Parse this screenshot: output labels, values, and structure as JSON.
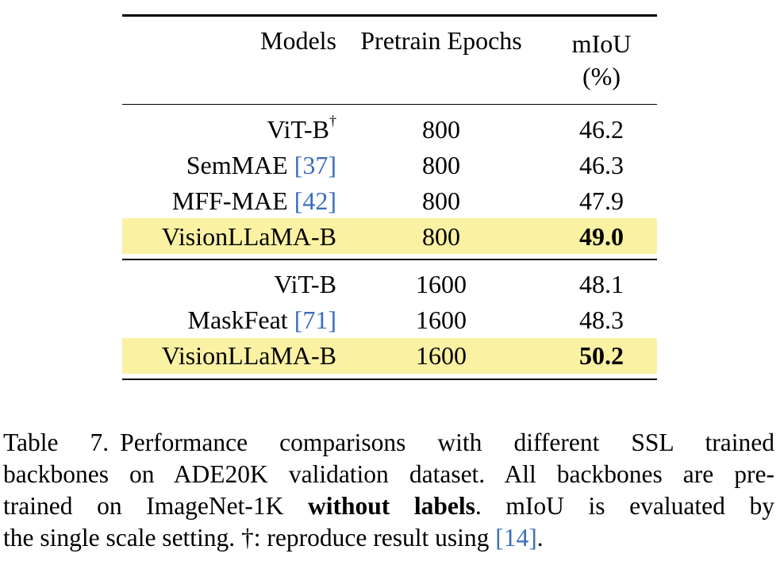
{
  "table": {
    "headers": {
      "models": "Models",
      "epochs": "Pretrain Epochs",
      "miou_line1": "mIoU",
      "miou_line2": "(%)"
    },
    "groups": [
      {
        "rows": [
          {
            "model": "ViT-B",
            "sup": "†",
            "ref": "",
            "epochs": "800",
            "miou": "46.2",
            "highlight": false,
            "bold": false
          },
          {
            "model": "SemMAE ",
            "sup": "",
            "ref": "[37]",
            "epochs": "800",
            "miou": "46.3",
            "highlight": false,
            "bold": false
          },
          {
            "model": "MFF-MAE ",
            "sup": "",
            "ref": "[42]",
            "epochs": "800",
            "miou": "47.9",
            "highlight": false,
            "bold": false
          },
          {
            "model": "VisionLLaMA-B",
            "sup": "",
            "ref": "",
            "epochs": "800",
            "miou": "49.0",
            "highlight": true,
            "bold": true
          }
        ]
      },
      {
        "rows": [
          {
            "model": "ViT-B",
            "sup": "",
            "ref": "",
            "epochs": "1600",
            "miou": "48.1",
            "highlight": false,
            "bold": false
          },
          {
            "model": "MaskFeat ",
            "sup": "",
            "ref": "[71]",
            "epochs": "1600",
            "miou": "48.3",
            "highlight": false,
            "bold": false
          },
          {
            "model": "VisionLLaMA-B",
            "sup": "",
            "ref": "",
            "epochs": "1600",
            "miou": "50.2",
            "highlight": true,
            "bold": true
          }
        ]
      }
    ]
  },
  "caption": {
    "label": "Table 7.",
    "line1": "Performance comparisons with different SSL trained",
    "line2": "backbones on ADE20K validation dataset. All backbones are pre-",
    "line3_a": "trained on ImageNet-1K ",
    "line3_bold": "without labels",
    "line3_b": ". mIoU is evaluated by",
    "line4_a": "the single scale setting. †: reproduce result using ",
    "line4_ref": "[14]",
    "line4_b": "."
  },
  "colors": {
    "highlight": "#faf1a3",
    "reference_link": "#3b6ebb"
  }
}
